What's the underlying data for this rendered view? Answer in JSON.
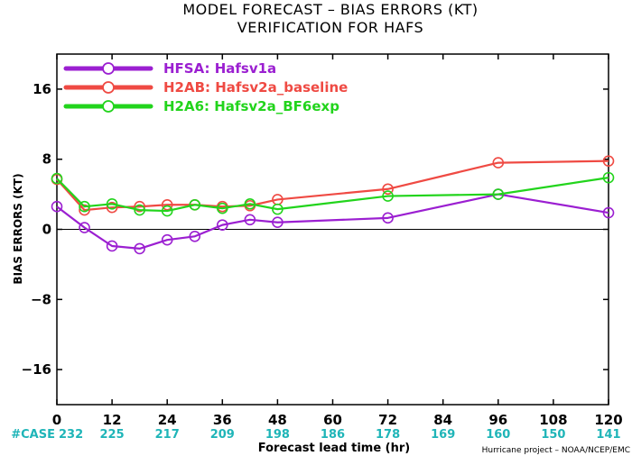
{
  "chart_data": {
    "type": "line",
    "title": "MODEL FORECAST – BIAS ERRORS (KT)",
    "subtitle": "VERIFICATION FOR HAFS",
    "xlabel": "Forecast lead time (hr)",
    "ylabel": "BIAS ERRORS (KT)",
    "xlim": [
      0,
      120
    ],
    "ylim": [
      -20,
      20
    ],
    "x_ticks": [
      0,
      12,
      24,
      36,
      48,
      60,
      72,
      84,
      96,
      108,
      120
    ],
    "y_ticks": [
      -16,
      -8,
      0,
      8,
      16
    ],
    "y_tick_labels": [
      "−16",
      "−8",
      "0",
      "8",
      "16"
    ],
    "grid": false,
    "legend_position": "top-left",
    "case_label": "#CASE",
    "case_counts": [
      "232",
      "225",
      "217",
      "209",
      "198",
      "186",
      "178",
      "169",
      "160",
      "150",
      "141"
    ],
    "case_color": "#1fb5b8",
    "credit": "Hurricane project – NOAA/NCEP/EMC",
    "series": [
      {
        "name": "HFSA: Hafsv1a",
        "color": "#9b1fd1",
        "x": [
          0,
          6,
          12,
          18,
          24,
          30,
          36,
          42,
          48,
          72,
          96,
          120
        ],
        "y": [
          2.6,
          0.2,
          -1.9,
          -2.2,
          -1.2,
          -0.8,
          0.5,
          1.1,
          0.8,
          1.3,
          4.0,
          1.9
        ]
      },
      {
        "name": "H2AB: Hafsv2a_baseline",
        "color": "#ef4a43",
        "x": [
          0,
          6,
          12,
          18,
          24,
          30,
          36,
          42,
          48,
          72,
          96,
          120
        ],
        "y": [
          5.7,
          2.2,
          2.5,
          2.6,
          2.8,
          2.8,
          2.6,
          2.7,
          3.4,
          4.6,
          7.6,
          7.8
        ]
      },
      {
        "name": "H2A6: Hafsv2a_BF6exp",
        "color": "#22d41c",
        "x": [
          0,
          6,
          12,
          18,
          24,
          30,
          36,
          42,
          48,
          72,
          96,
          120
        ],
        "y": [
          5.8,
          2.6,
          2.9,
          2.2,
          2.1,
          2.8,
          2.4,
          2.9,
          2.3,
          3.8,
          4.0,
          5.9
        ]
      }
    ]
  }
}
